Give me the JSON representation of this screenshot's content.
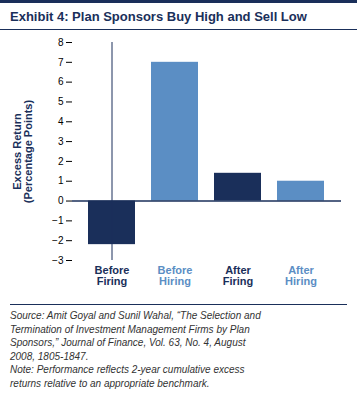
{
  "chart_data": {
    "type": "bar",
    "title": "Exhibit 4: Plan Sponsors Buy High and Sell Low",
    "categories": [
      "Before\nFiring",
      "Before\nHiring",
      "After\nFiring",
      "After\nHiring"
    ],
    "values": [
      -2.2,
      7.0,
      1.4,
      1.0
    ],
    "colors": [
      "#1a2f5a",
      "#5b8ec4",
      "#1a2f5a",
      "#5b8ec4"
    ],
    "ylabel": "Excess Return\n(Percentage Points)",
    "ylim": [
      -3,
      8
    ],
    "yticks": [
      -3,
      -2,
      -1,
      0,
      1,
      2,
      3,
      4,
      5,
      6,
      7,
      8
    ],
    "grid": false,
    "annotations": [
      "Source: Amit Goyal and Sunil Wahal, “The Selection and\nTermination of Investment Management Firms by Plan\nSponsors,” Journal of Finance, Vol. 63, No. 4, August\n2008, 1805-1847.\nNote: Performance reflects 2-year cumulative excess\nreturns relative to an appropriate benchmark."
    ]
  }
}
